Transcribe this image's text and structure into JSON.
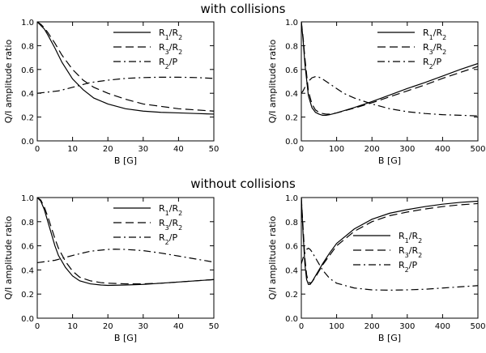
{
  "section_titles": [
    "with collisions",
    "without collisions"
  ],
  "chart_data": [
    {
      "type": "line",
      "section": "with collisions",
      "xlabel": "B [G]",
      "ylabel": "Q/I amplitude ratio",
      "xlim": [
        0,
        50
      ],
      "ylim": [
        0,
        1.0
      ],
      "xticks": [
        0,
        10,
        20,
        30,
        40,
        50
      ],
      "yticks": [
        0.0,
        0.2,
        0.4,
        0.6,
        0.8,
        1.0
      ],
      "legend_position": "top-right",
      "series": [
        {
          "name": "R1/R2",
          "label_html": "R<tspan baseline-shift='sub' font-size='8'>1</tspan>/R<tspan baseline-shift='sub' font-size='8'>2</tspan>",
          "style": "solid",
          "x": [
            0,
            1,
            2,
            3,
            5,
            7,
            10,
            13,
            16,
            20,
            25,
            30,
            35,
            40,
            45,
            50
          ],
          "y": [
            1.0,
            0.97,
            0.94,
            0.89,
            0.78,
            0.66,
            0.52,
            0.43,
            0.36,
            0.31,
            0.27,
            0.25,
            0.24,
            0.235,
            0.23,
            0.225
          ]
        },
        {
          "name": "R3/R2",
          "label_html": "R<tspan baseline-shift='sub' font-size='8'>3</tspan>/R<tspan baseline-shift='sub' font-size='8'>2</tspan>",
          "style": "dashed",
          "x": [
            0,
            1,
            2,
            3,
            5,
            7,
            10,
            13,
            16,
            20,
            25,
            30,
            35,
            40,
            45,
            50
          ],
          "y": [
            1.0,
            0.98,
            0.95,
            0.91,
            0.82,
            0.72,
            0.6,
            0.51,
            0.45,
            0.4,
            0.35,
            0.31,
            0.29,
            0.27,
            0.26,
            0.25
          ]
        },
        {
          "name": "R2/P",
          "label_html": "R<tspan baseline-shift='sub' font-size='8'>2</tspan>/P",
          "style": "dashdot",
          "x": [
            0,
            3,
            6,
            10,
            15,
            20,
            25,
            30,
            35,
            40,
            45,
            50
          ],
          "y": [
            0.4,
            0.41,
            0.42,
            0.45,
            0.49,
            0.51,
            0.525,
            0.532,
            0.535,
            0.535,
            0.532,
            0.525
          ]
        }
      ]
    },
    {
      "type": "line",
      "section": "with collisions",
      "xlabel": "B [G]",
      "ylabel": "Q/I amplitude ratio",
      "xlim": [
        0,
        500
      ],
      "ylim": [
        0,
        1.0
      ],
      "xticks": [
        0,
        100,
        200,
        300,
        400,
        500
      ],
      "yticks": [
        0.0,
        0.2,
        0.4,
        0.6,
        0.8,
        1.0
      ],
      "legend_position": "top-right",
      "series": [
        {
          "name": "R1/R2",
          "label_html": "R<tspan baseline-shift='sub' font-size='8'>1</tspan>/R<tspan baseline-shift='sub' font-size='8'>2</tspan>",
          "style": "solid",
          "x": [
            0,
            5,
            10,
            20,
            30,
            40,
            50,
            60,
            70,
            80,
            100,
            150,
            200,
            250,
            300,
            350,
            400,
            450,
            500
          ],
          "y": [
            1.0,
            0.85,
            0.65,
            0.38,
            0.28,
            0.24,
            0.225,
            0.215,
            0.215,
            0.22,
            0.235,
            0.28,
            0.33,
            0.385,
            0.44,
            0.49,
            0.545,
            0.6,
            0.65
          ]
        },
        {
          "name": "R3/R2",
          "label_html": "R<tspan baseline-shift='sub' font-size='8'>3</tspan>/R<tspan baseline-shift='sub' font-size='8'>2</tspan>",
          "style": "dashed",
          "x": [
            0,
            5,
            10,
            20,
            30,
            40,
            50,
            60,
            70,
            80,
            100,
            150,
            200,
            250,
            300,
            350,
            400,
            450,
            500
          ],
          "y": [
            1.0,
            0.87,
            0.7,
            0.42,
            0.31,
            0.26,
            0.24,
            0.23,
            0.225,
            0.225,
            0.235,
            0.275,
            0.32,
            0.37,
            0.42,
            0.47,
            0.525,
            0.575,
            0.625
          ]
        },
        {
          "name": "R2/P",
          "label_html": "R<tspan baseline-shift='sub' font-size='8'>2</tspan>/P",
          "style": "dashdot",
          "x": [
            0,
            5,
            10,
            20,
            30,
            40,
            50,
            60,
            70,
            80,
            100,
            120,
            150,
            200,
            250,
            300,
            350,
            400,
            450,
            500
          ],
          "y": [
            0.4,
            0.42,
            0.45,
            0.5,
            0.53,
            0.54,
            0.535,
            0.52,
            0.5,
            0.48,
            0.44,
            0.4,
            0.36,
            0.31,
            0.27,
            0.245,
            0.23,
            0.22,
            0.215,
            0.21
          ]
        }
      ]
    },
    {
      "type": "line",
      "section": "without collisions",
      "xlabel": "B [G]",
      "ylabel": "Q/I amplitude ratio",
      "xlim": [
        0,
        50
      ],
      "ylim": [
        0,
        1.0
      ],
      "xticks": [
        0,
        10,
        20,
        30,
        40,
        50
      ],
      "yticks": [
        0.0,
        0.2,
        0.4,
        0.6,
        0.8,
        1.0
      ],
      "legend_position": "top-right",
      "series": [
        {
          "name": "R1/R2",
          "label_html": "R<tspan baseline-shift='sub' font-size='8'>1</tspan>/R<tspan baseline-shift='sub' font-size='8'>2</tspan>",
          "style": "solid",
          "x": [
            0,
            1,
            2,
            3,
            4,
            5,
            6,
            8,
            10,
            12,
            15,
            18,
            20,
            25,
            30,
            35,
            40,
            45,
            50
          ],
          "y": [
            1.0,
            0.97,
            0.9,
            0.8,
            0.7,
            0.6,
            0.52,
            0.42,
            0.35,
            0.31,
            0.285,
            0.275,
            0.272,
            0.275,
            0.28,
            0.29,
            0.3,
            0.31,
            0.32
          ]
        },
        {
          "name": "R3/R2",
          "label_html": "R<tspan baseline-shift='sub' font-size='8'>3</tspan>/R<tspan baseline-shift='sub' font-size='8'>2</tspan>",
          "style": "dashed",
          "x": [
            0,
            1,
            2,
            3,
            4,
            5,
            6,
            8,
            10,
            12,
            15,
            18,
            20,
            25,
            30,
            35,
            40,
            45,
            50
          ],
          "y": [
            1.0,
            0.98,
            0.92,
            0.84,
            0.75,
            0.66,
            0.58,
            0.47,
            0.39,
            0.34,
            0.31,
            0.295,
            0.29,
            0.285,
            0.285,
            0.29,
            0.3,
            0.31,
            0.32
          ]
        },
        {
          "name": "R2/P",
          "label_html": "R<tspan baseline-shift='sub' font-size='8'>2</tspan>/P",
          "style": "dashdot",
          "x": [
            0,
            5,
            10,
            15,
            20,
            22,
            25,
            30,
            35,
            40,
            45,
            50
          ],
          "y": [
            0.46,
            0.48,
            0.52,
            0.555,
            0.57,
            0.572,
            0.57,
            0.56,
            0.54,
            0.515,
            0.49,
            0.465
          ]
        }
      ]
    },
    {
      "type": "line",
      "section": "without collisions",
      "xlabel": "B [G]",
      "ylabel": "Q/I amplitude ratio",
      "xlim": [
        0,
        500
      ],
      "ylim": [
        0,
        1.0
      ],
      "xticks": [
        0,
        100,
        200,
        300,
        400,
        500
      ],
      "yticks": [
        0.0,
        0.2,
        0.4,
        0.6,
        0.8,
        1.0
      ],
      "legend_position": "right",
      "series": [
        {
          "name": "R1/R2",
          "label_html": "R<tspan baseline-shift='sub' font-size='8'>1</tspan>/R<tspan baseline-shift='sub' font-size='8'>2</tspan>",
          "style": "solid",
          "x": [
            0,
            5,
            10,
            15,
            20,
            25,
            30,
            40,
            50,
            60,
            80,
            100,
            150,
            200,
            250,
            300,
            350,
            400,
            450,
            500
          ],
          "y": [
            1.0,
            0.7,
            0.45,
            0.32,
            0.28,
            0.28,
            0.3,
            0.35,
            0.4,
            0.45,
            0.54,
            0.62,
            0.74,
            0.82,
            0.87,
            0.9,
            0.925,
            0.945,
            0.96,
            0.97
          ]
        },
        {
          "name": "R3/R2",
          "label_html": "R<tspan baseline-shift='sub' font-size='8'>3</tspan>/R<tspan baseline-shift='sub' font-size='8'>2</tspan>",
          "style": "dashed",
          "x": [
            0,
            5,
            10,
            15,
            20,
            25,
            30,
            40,
            50,
            60,
            80,
            100,
            150,
            200,
            250,
            300,
            350,
            400,
            450,
            500
          ],
          "y": [
            1.0,
            0.75,
            0.5,
            0.36,
            0.3,
            0.29,
            0.3,
            0.34,
            0.39,
            0.44,
            0.52,
            0.6,
            0.72,
            0.8,
            0.85,
            0.88,
            0.905,
            0.925,
            0.94,
            0.95
          ]
        },
        {
          "name": "R2/P",
          "label_html": "R<tspan baseline-shift='sub' font-size='8'>2</tspan>/P",
          "style": "dashdot",
          "x": [
            0,
            5,
            10,
            15,
            20,
            25,
            30,
            40,
            50,
            60,
            80,
            100,
            150,
            200,
            250,
            300,
            350,
            400,
            450,
            500
          ],
          "y": [
            0.45,
            0.5,
            0.54,
            0.57,
            0.58,
            0.57,
            0.55,
            0.5,
            0.45,
            0.4,
            0.33,
            0.29,
            0.25,
            0.235,
            0.232,
            0.235,
            0.24,
            0.25,
            0.26,
            0.27
          ]
        }
      ]
    }
  ]
}
